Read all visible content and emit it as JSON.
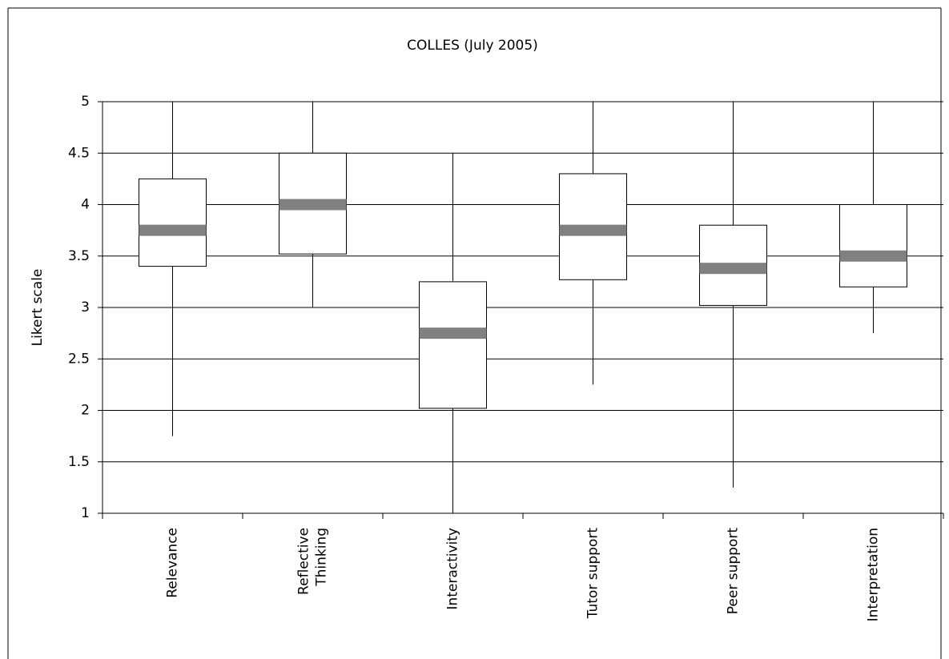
{
  "chart_data": {
    "type": "box",
    "title": "COLLES (July 2005)",
    "y_label": "Likert scale",
    "categories": [
      "Relevance",
      "Reflective\nThinking",
      "Interactivity",
      "Tutor support",
      "Peer support",
      "Interpretation"
    ],
    "min": [
      1.75,
      3,
      1,
      2.25,
      1.25,
      2.75
    ],
    "q1": [
      3.4,
      3.52,
      2.02,
      3.27,
      3.02,
      3.2
    ],
    "median": [
      3.75,
      4,
      2.75,
      3.75,
      3.38,
      3.5
    ],
    "q3": [
      4.25,
      4.5,
      3.25,
      4.3,
      3.8,
      4
    ],
    "max": [
      5,
      5,
      4.5,
      5,
      5,
      5
    ],
    "box_color": "#ffffff",
    "median_color": "#808080",
    "ylim": [
      1,
      5
    ],
    "yticks": [
      1,
      1.5,
      2,
      2.5,
      3,
      3.5,
      4,
      4.5,
      5
    ],
    "grid": true
  }
}
